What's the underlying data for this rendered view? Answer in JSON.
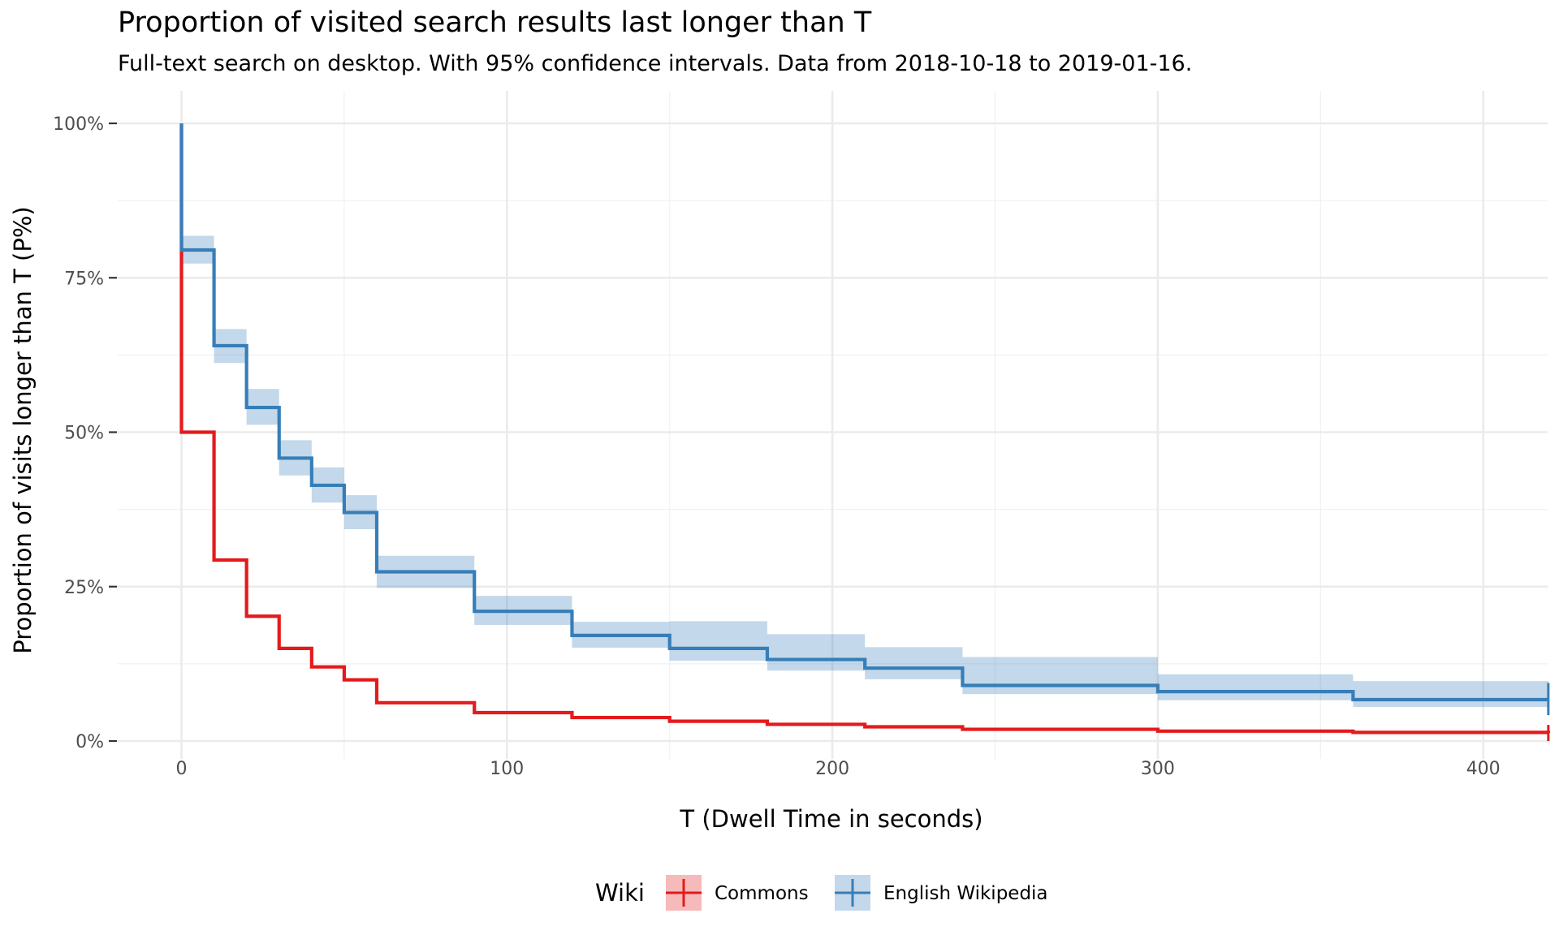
{
  "chart_data": {
    "type": "line",
    "step": true,
    "title": "Proportion of visited search results last longer than T",
    "subtitle": "Full-text search on desktop. With 95% confidence intervals. Data from 2018-10-18 to 2019-01-16.",
    "xlabel": "T (Dwell Time in seconds)",
    "ylabel": "Proportion of visits longer than T (P%)",
    "xlim": [
      -20,
      420
    ],
    "ylim": [
      -0.05,
      1.03
    ],
    "x_ticks": [
      0,
      100,
      200,
      300,
      400
    ],
    "x_tick_labels": [
      "0",
      "100",
      "200",
      "300",
      "400"
    ],
    "y_ticks": [
      0,
      0.25,
      0.5,
      0.75,
      1.0
    ],
    "y_tick_labels": [
      "0%",
      "25%",
      "50%",
      "75%",
      "100%"
    ],
    "grid": true,
    "legend": {
      "title": "Wiki",
      "position": "bottom"
    },
    "series": [
      {
        "name": "Commons",
        "color": "#e41a1c",
        "x": [
          0,
          0,
          10,
          20,
          30,
          40,
          50,
          60,
          90,
          120,
          150,
          180,
          210,
          240,
          300,
          360,
          420
        ],
        "y": [
          1.0,
          0.5,
          0.293,
          0.202,
          0.15,
          0.12,
          0.099,
          0.062,
          0.046,
          0.038,
          0.032,
          0.027,
          0.023,
          0.019,
          0.016,
          0.014,
          0.013
        ],
        "lower": [
          1.0,
          0.5,
          0.293,
          0.202,
          0.15,
          0.12,
          0.099,
          0.062,
          0.046,
          0.038,
          0.032,
          0.027,
          0.023,
          0.019,
          0.016,
          0.014,
          0.013
        ],
        "upper": [
          1.0,
          0.5,
          0.293,
          0.202,
          0.15,
          0.12,
          0.099,
          0.062,
          0.046,
          0.038,
          0.032,
          0.027,
          0.023,
          0.019,
          0.016,
          0.014,
          0.013
        ]
      },
      {
        "name": "English Wikipedia",
        "color": "#377eb8",
        "x": [
          0,
          0,
          10,
          20,
          30,
          40,
          50,
          60,
          90,
          120,
          150,
          180,
          210,
          240,
          300,
          360,
          420
        ],
        "y": [
          1.0,
          0.795,
          0.64,
          0.54,
          0.458,
          0.414,
          0.37,
          0.274,
          0.21,
          0.171,
          0.15,
          0.132,
          0.118,
          0.09,
          0.08,
          0.067,
          0.067
        ],
        "lower": [
          1.0,
          0.773,
          0.612,
          0.512,
          0.43,
          0.386,
          0.343,
          0.248,
          0.188,
          0.151,
          0.13,
          0.114,
          0.1,
          0.076,
          0.066,
          0.055,
          0.055
        ],
        "upper": [
          1.0,
          0.818,
          0.667,
          0.57,
          0.487,
          0.443,
          0.398,
          0.3,
          0.235,
          0.193,
          0.194,
          0.173,
          0.152,
          0.136,
          0.108,
          0.097,
          0.081
        ]
      }
    ]
  }
}
